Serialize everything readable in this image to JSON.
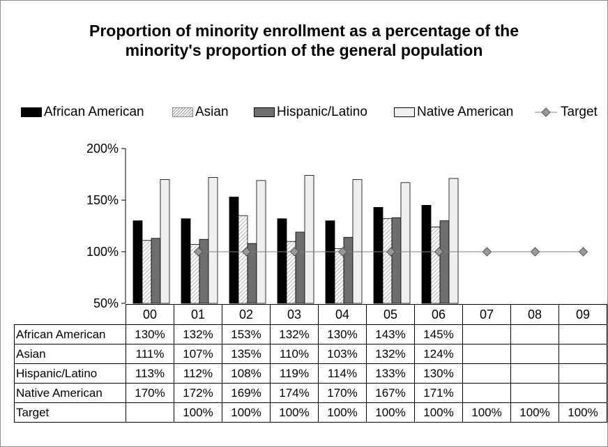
{
  "chart_data": {
    "type": "bar",
    "title": "Proportion of minority enrollment as a percentage of the minority's proportion of the general population",
    "title_lines": [
      "Proportion of minority enrollment as a percentage of the",
      "minority's proportion of the general population"
    ],
    "categories": [
      "00",
      "01",
      "02",
      "03",
      "04",
      "05",
      "06",
      "07",
      "08",
      "09"
    ],
    "ylim": [
      50,
      200
    ],
    "yticks": [
      "50%",
      "100%",
      "150%",
      "200%"
    ],
    "ytick_values": [
      50,
      100,
      150,
      200
    ],
    "legend_position": "top",
    "series": [
      {
        "name": "African American",
        "kind": "bar",
        "color": "#000000",
        "values": [
          130,
          132,
          153,
          132,
          130,
          143,
          145,
          null,
          null,
          null
        ]
      },
      {
        "name": "Asian",
        "kind": "bar",
        "color": "#d9d9d9",
        "pattern": "hatched",
        "values": [
          111,
          107,
          135,
          110,
          103,
          132,
          124,
          null,
          null,
          null
        ]
      },
      {
        "name": "Hispanic/Latino",
        "kind": "bar",
        "color": "#6e6e6e",
        "values": [
          113,
          112,
          108,
          119,
          114,
          133,
          130,
          null,
          null,
          null
        ]
      },
      {
        "name": "Native American",
        "kind": "bar",
        "color": "#efefef",
        "values": [
          170,
          172,
          169,
          174,
          170,
          167,
          171,
          null,
          null,
          null
        ]
      },
      {
        "name": "Target",
        "kind": "line",
        "color": "#7f7f7f",
        "marker": "diamond",
        "values": [
          null,
          100,
          100,
          100,
          100,
          100,
          100,
          100,
          100,
          100
        ]
      }
    ],
    "table": {
      "rows": [
        {
          "label": "African American",
          "cells": [
            "130%",
            "132%",
            "153%",
            "132%",
            "130%",
            "143%",
            "145%",
            "",
            "",
            ""
          ]
        },
        {
          "label": "Asian",
          "cells": [
            "111%",
            "107%",
            "135%",
            "110%",
            "103%",
            "132%",
            "124%",
            "",
            "",
            ""
          ]
        },
        {
          "label": "Hispanic/Latino",
          "cells": [
            "113%",
            "112%",
            "108%",
            "119%",
            "114%",
            "133%",
            "130%",
            "",
            "",
            ""
          ]
        },
        {
          "label": "Native American",
          "cells": [
            "170%",
            "172%",
            "169%",
            "174%",
            "170%",
            "167%",
            "171%",
            "",
            "",
            ""
          ]
        },
        {
          "label": "Target",
          "cells": [
            "",
            "100%",
            "100%",
            "100%",
            "100%",
            "100%",
            "100%",
            "100%",
            "100%",
            "100%"
          ]
        }
      ]
    }
  }
}
